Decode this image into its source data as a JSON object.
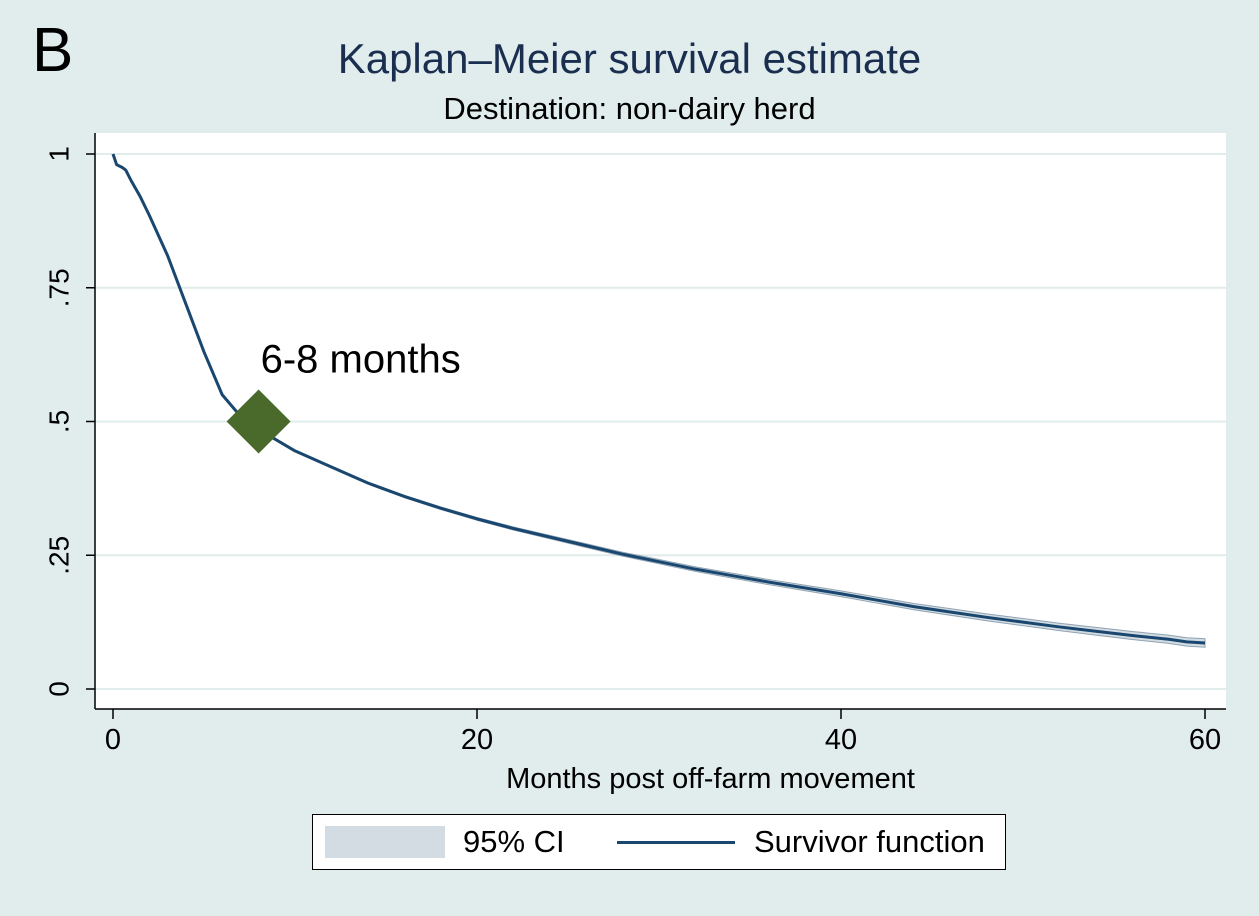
{
  "panel_label": "B",
  "chart_data": {
    "type": "line",
    "title": "Kaplan–Meier survival estimate",
    "subtitle": "Destination: non-dairy herd",
    "xlabel": "Months post off-farm movement",
    "ylabel": "",
    "xlim": [
      0,
      60
    ],
    "ylim": [
      0,
      1
    ],
    "x_ticks": [
      0,
      20,
      40,
      60
    ],
    "x_tick_labels": [
      "0",
      "20",
      "40",
      "60"
    ],
    "y_ticks": [
      0,
      0.25,
      0.5,
      0.75,
      1
    ],
    "y_tick_labels": [
      "0",
      ".25",
      ".5",
      ".75",
      "1"
    ],
    "grid": true,
    "series": [
      {
        "name": "Survivor function",
        "color": "#1a476f",
        "x": [
          0,
          0.2,
          0.5,
          0.7,
          1,
          1.5,
          2,
          3,
          4,
          5,
          6,
          7,
          8,
          9,
          10,
          12,
          14,
          16,
          18,
          20,
          22,
          24,
          26,
          28,
          30,
          32,
          34,
          36,
          38,
          40,
          42,
          44,
          46,
          48,
          50,
          52,
          54,
          56,
          58,
          59,
          60
        ],
        "y": [
          1,
          0.98,
          0.975,
          0.97,
          0.95,
          0.92,
          0.885,
          0.81,
          0.72,
          0.63,
          0.55,
          0.51,
          0.485,
          0.465,
          0.445,
          0.415,
          0.385,
          0.36,
          0.338,
          0.318,
          0.3,
          0.284,
          0.268,
          0.252,
          0.238,
          0.224,
          0.212,
          0.2,
          0.189,
          0.178,
          0.166,
          0.154,
          0.144,
          0.134,
          0.125,
          0.116,
          0.108,
          0.1,
          0.093,
          0.088,
          0.086
        ]
      },
      {
        "name": "95% CI",
        "color": "#d3dce2",
        "ci_halfwidth_start": 0.0,
        "ci_halfwidth_end": 0.008
      }
    ],
    "annotations": [
      {
        "text": "6-8 months",
        "x": 8,
        "y": 0.5,
        "marker": "diamond",
        "marker_color": "#4a6a2c"
      }
    ],
    "legend": {
      "placement": "bottom",
      "ci_label": "95% CI",
      "line_label": "Survivor function"
    }
  }
}
